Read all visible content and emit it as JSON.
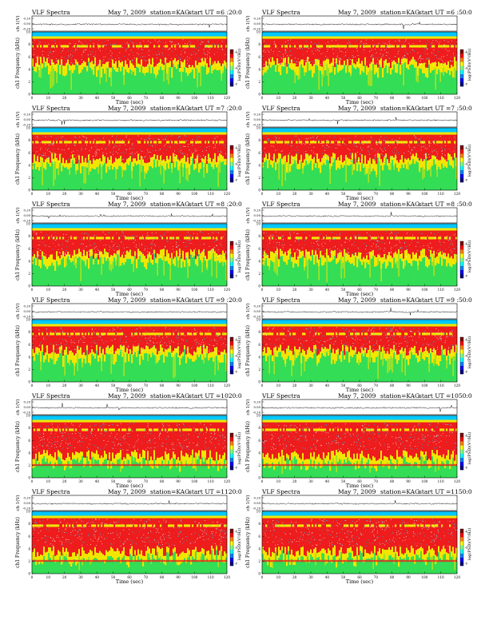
{
  "colors": {
    "ink": "#000000",
    "band": "#00c8ff",
    "low": "#33dd55",
    "mid": "#f2e600",
    "high": "#ee1c1c",
    "whitish": "#ffffff",
    "colorbar": [
      "#00007f",
      "#0000ff",
      "#007fff",
      "#00ffff",
      "#7fff7f",
      "#ffff00",
      "#ff7f00",
      "#ff0000",
      "#7f0000"
    ]
  },
  "panels": [
    {
      "title": "VLF Spectra",
      "date": "May 7, 2009",
      "station": "station=KAG",
      "start": "start UT =6 :20:0"
    },
    {
      "title": "VLF Spectra",
      "date": "May 7, 2009",
      "station": "station=KAG",
      "start": "start UT =6 :50:0"
    },
    {
      "title": "VLF Spectra",
      "date": "May 7, 2009",
      "station": "station=KAG",
      "start": "start UT =7 :20:0"
    },
    {
      "title": "VLF Spectra",
      "date": "May 7, 2009",
      "station": "station=KAG",
      "start": "start UT =7 :50:0"
    },
    {
      "title": "VLF Spectra",
      "date": "May 7, 2009",
      "station": "station=KAG",
      "start": "start UT =8 :20:0"
    },
    {
      "title": "VLF Spectra",
      "date": "May 7, 2009",
      "station": "station=KAG",
      "start": "start UT =8 :50:0"
    },
    {
      "title": "VLF Spectra",
      "date": "May 7, 2009",
      "station": "station=KAG",
      "start": "start UT =9 :20:0"
    },
    {
      "title": "VLF Spectra",
      "date": "May 7, 2009",
      "station": "station=KAG",
      "start": "start UT =9 :50:0"
    },
    {
      "title": "VLF Spectra",
      "date": "May 7, 2009",
      "station": "station=KAG",
      "start": "start UT =1020:0"
    },
    {
      "title": "VLF Spectra",
      "date": "May 7, 2009",
      "station": "station=KAG",
      "start": "start UT =1050:0"
    },
    {
      "title": "VLF Spectra",
      "date": "May 7, 2009",
      "station": "station=KAG",
      "start": "start UT =1120:0"
    },
    {
      "title": "VLF Spectra",
      "date": "May 7, 2009",
      "station": "station=KAG",
      "start": "start UT =1150:0"
    }
  ],
  "chart_data": {
    "type": "heatmap",
    "xlabel": "Time (sec)",
    "xlim": [
      0,
      120
    ],
    "xticks": [
      "0",
      "10",
      "20",
      "30",
      "40",
      "50",
      "60",
      "70",
      "80",
      "90",
      "100",
      "110",
      "120"
    ],
    "ylabel_ch": "ch 1(V)",
    "yticks_ch": [
      "0.20",
      "0.00",
      "-0.20"
    ],
    "ylabel_freq": "ch1 Frequency (kHz)",
    "ylim_freq": [
      0,
      10
    ],
    "yticks_freq": [
      "0",
      "2",
      "4",
      "6",
      "8",
      "10"
    ],
    "colorbar_label": "log(PSD)(V²/Hz)",
    "colorbar_ticks": [
      "-4",
      "-6",
      "-8"
    ]
  }
}
